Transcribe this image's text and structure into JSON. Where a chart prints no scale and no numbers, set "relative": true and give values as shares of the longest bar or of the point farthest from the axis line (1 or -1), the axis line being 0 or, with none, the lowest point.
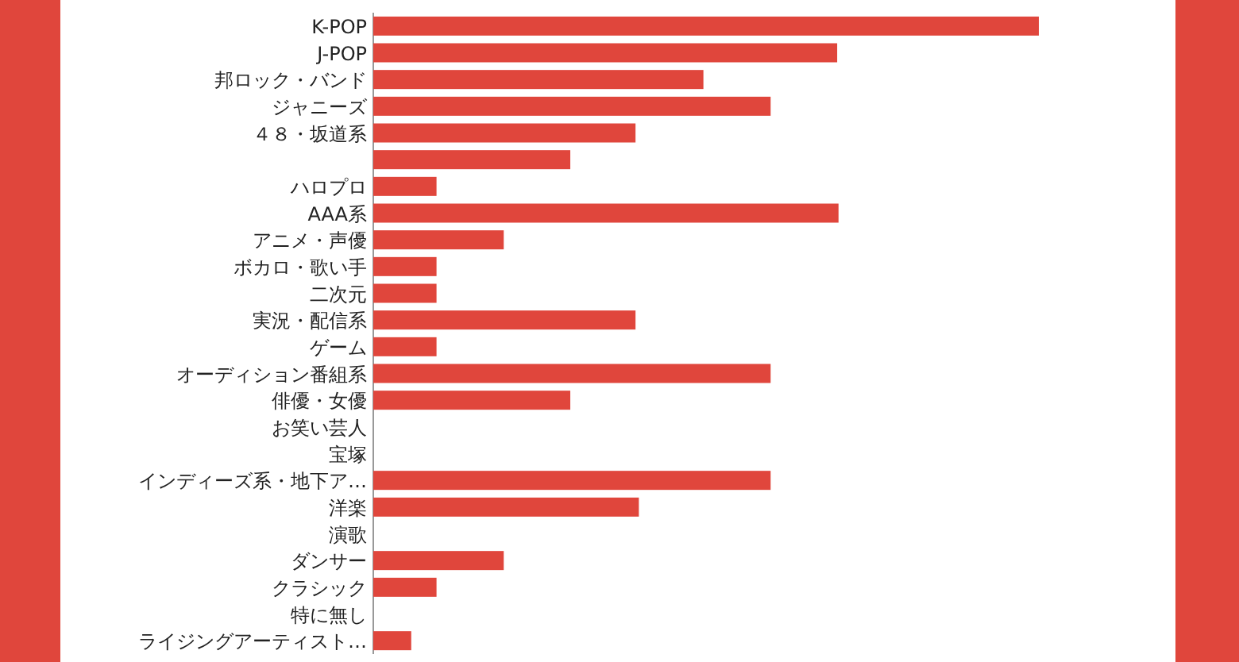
{
  "chart_data": {
    "type": "bar",
    "orientation": "horizontal",
    "relative": true,
    "color": "#e0463c",
    "categories": [
      "K-POP",
      "J-POP",
      "邦ロック・バンド",
      "ジャニーズ",
      "４８・坂道系",
      null,
      "ハロプロ",
      "AAA系",
      "アニメ・声優",
      "ボカロ・歌い手",
      "二次元",
      "実況・配信系",
      "ゲーム",
      "オーディション番組系",
      "俳優・女優",
      "お笑い芸人",
      "宝塚",
      "インディーズ系・地下ア…",
      "洋楽",
      "演歌",
      "ダンサー",
      "クラシック",
      "特に無し",
      "ライジングアーティスト…"
    ],
    "values": [
      1,
      0.697,
      0.496,
      0.597,
      0.394,
      0.296,
      0.095,
      0.699,
      0.196,
      0.095,
      0.095,
      0.394,
      0.095,
      0.597,
      0.296,
      0,
      0,
      0.597,
      0.399,
      0,
      0.196,
      0.095,
      0,
      0.057
    ]
  }
}
